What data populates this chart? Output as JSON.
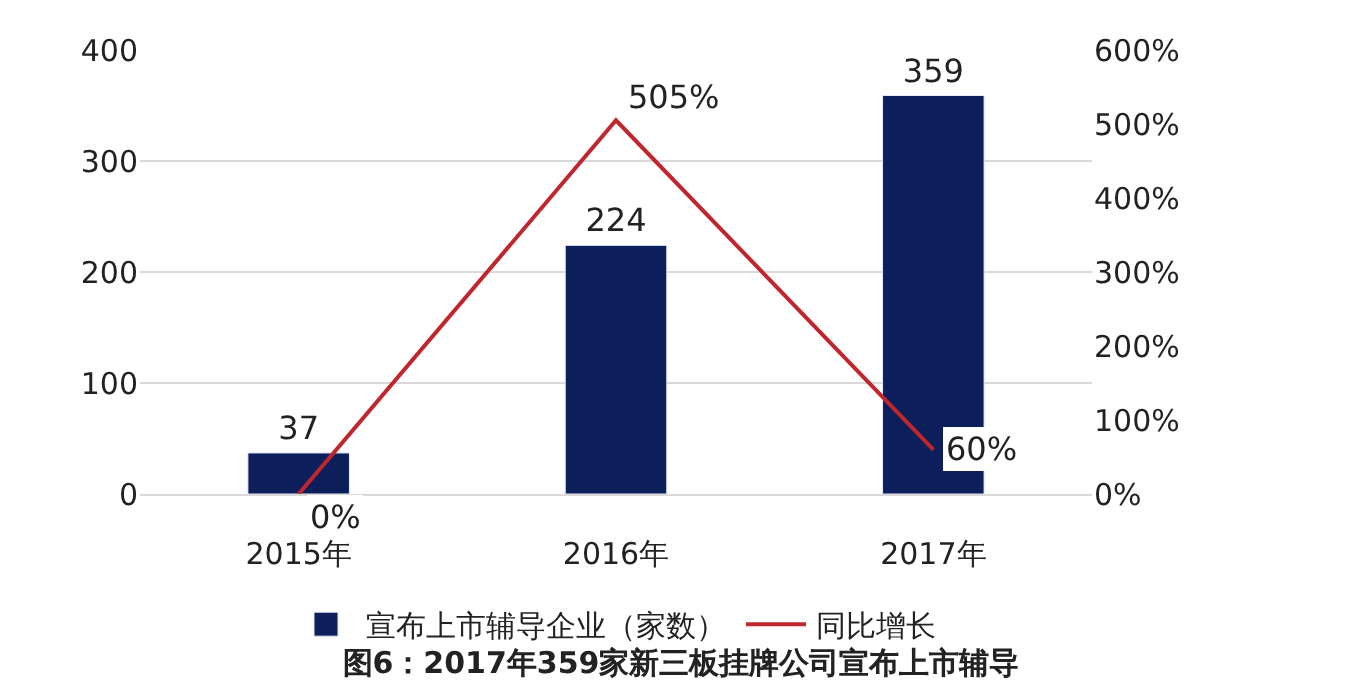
{
  "chart_data": {
    "type": "bar",
    "title": "图6：2017年359家新三板挂牌公司宣布上市辅导",
    "categories": [
      "2015年",
      "2016年",
      "2017年"
    ],
    "series": [
      {
        "name": "宣布上市辅导企业（家数）",
        "type": "bar",
        "color": "#0c1f5b",
        "values": [
          37,
          224,
          359
        ],
        "value_labels": [
          "37",
          "224",
          "359"
        ]
      },
      {
        "name": "同比增长",
        "type": "line",
        "axis": "y2",
        "color": "#c0262d",
        "values": [
          0,
          505,
          60
        ],
        "value_labels": [
          "0%",
          "505%",
          "60%"
        ]
      }
    ],
    "ylim": [
      0,
      400
    ],
    "yticks": [
      0,
      100,
      200,
      300,
      400
    ],
    "y2lim": [
      0,
      600
    ],
    "y2ticks": [
      {
        "value": 0,
        "label": "0%"
      },
      {
        "value": 100,
        "label": "100%"
      },
      {
        "value": 200,
        "label": "200%"
      },
      {
        "value": 300,
        "label": "300%"
      },
      {
        "value": 400,
        "label": "400%"
      },
      {
        "value": 500,
        "label": "500%"
      },
      {
        "value": 600,
        "label": "600%"
      }
    ],
    "grid": "y",
    "legend": "bottom",
    "marker": "none",
    "line_style": "solid"
  }
}
